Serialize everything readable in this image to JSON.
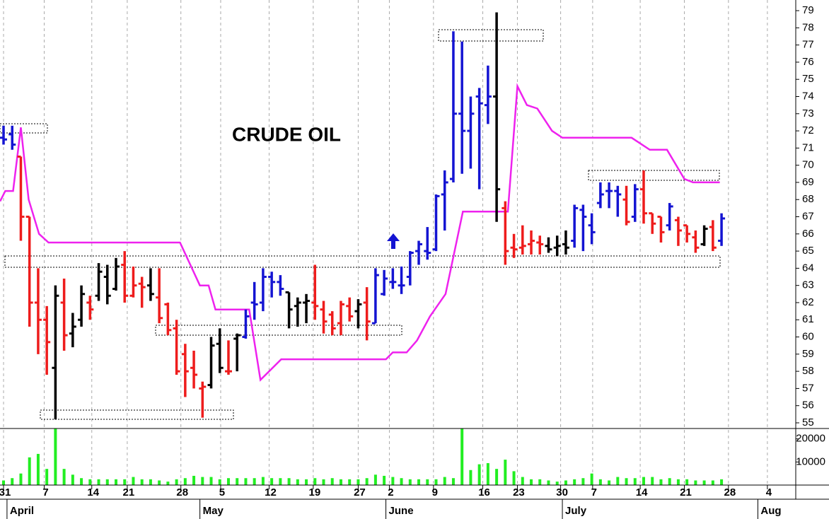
{
  "chart_data": [
    {
      "type": "ohlc",
      "title": "CRUDE OIL",
      "open": [
        71.6,
        71.8,
        70.5,
        67.0,
        62.0,
        61.0,
        58.2,
        62.0,
        60.2,
        61.0,
        62.0,
        62.4,
        63.5,
        62.8,
        64.2,
        62.4,
        63.1,
        63.0,
        62.3,
        61.9,
        60.5,
        59.0,
        58.2,
        57.0,
        57.2,
        59.6,
        58.0,
        59.9,
        60.0,
        62.0,
        62.0,
        63.5,
        63.2,
        62.6,
        61.8,
        62.0,
        62.0,
        61.6,
        61.3,
        60.8,
        61.8,
        61.5,
        62.0,
        60.8,
        62.5,
        63.2,
        63.0,
        63.5,
        65.0,
        65.0,
        65.1,
        68.3,
        69.2,
        73.0,
        72.0,
        74.0,
        73.5,
        74.0,
        67.5,
        65.2,
        65.2,
        65.4,
        65.5,
        65.3,
        65.2,
        65.4,
        65.6,
        67.4,
        66.5,
        67.8,
        68.5,
        68.5,
        68.0,
        67.0,
        68.6,
        67.2,
        67.0,
        66.5,
        66.8,
        66.5,
        65.8,
        65.4,
        66.4,
        65.6
      ],
      "high": [
        72.3,
        72.3,
        70.5,
        67.0,
        64.0,
        61.8,
        63.0,
        63.4,
        61.4,
        63.0,
        62.4,
        64.3,
        64.2,
        64.6,
        65.0,
        64.1,
        63.5,
        64.0,
        64.0,
        62.0,
        61.0,
        59.6,
        59.2,
        57.4,
        60.0,
        60.5,
        59.8,
        60.2,
        61.6,
        63.2,
        64.0,
        63.8,
        63.6,
        62.6,
        62.3,
        62.5,
        64.2,
        62.1,
        61.5,
        62.1,
        62.3,
        62.2,
        62.9,
        64.0,
        63.9,
        64.0,
        64.1,
        65.0,
        65.6,
        66.4,
        68.3,
        69.7,
        77.8,
        77.2,
        74.0,
        74.5,
        75.8,
        78.9,
        67.9,
        66.0,
        66.5,
        66.2,
        65.9,
        65.8,
        65.9,
        66.2,
        67.7,
        67.7,
        67.2,
        69.0,
        69.0,
        68.8,
        68.8,
        68.9,
        69.7,
        67.2,
        67.0,
        67.8,
        67.0,
        66.5,
        66.2,
        66.5,
        66.8,
        67.2
      ],
      "low": [
        71.2,
        70.9,
        65.6,
        60.6,
        59.0,
        57.8,
        55.2,
        59.2,
        59.4,
        60.6,
        61.0,
        62.1,
        61.9,
        62.7,
        62.0,
        62.3,
        61.7,
        62.1,
        60.8,
        60.1,
        57.8,
        56.5,
        57.0,
        55.3,
        57.0,
        57.9,
        57.8,
        58.0,
        59.9,
        61.0,
        61.5,
        62.3,
        62.4,
        60.5,
        60.6,
        60.8,
        61.0,
        60.2,
        60.1,
        60.1,
        60.9,
        60.5,
        59.8,
        60.8,
        62.4,
        62.8,
        62.5,
        63.0,
        64.2,
        64.5,
        65.0,
        66.2,
        69.0,
        69.5,
        69.8,
        68.6,
        72.4,
        66.7,
        64.2,
        64.6,
        64.8,
        64.8,
        64.8,
        64.9,
        64.7,
        64.8,
        65.2,
        65.0,
        65.4,
        67.5,
        67.5,
        67.0,
        66.5,
        66.7,
        66.6,
        66.0,
        65.5,
        66.2,
        65.3,
        65.5,
        64.9,
        65.3,
        65.0,
        65.3
      ],
      "close": [
        71.5,
        71.2,
        67.0,
        62.0,
        61.0,
        59.7,
        62.4,
        60.1,
        60.6,
        62.5,
        61.6,
        63.8,
        62.4,
        64.1,
        62.4,
        63.0,
        62.9,
        62.5,
        61.1,
        60.4,
        58.0,
        58.0,
        57.8,
        57.1,
        59.5,
        58.2,
        58.0,
        60.1,
        61.2,
        61.9,
        63.5,
        63.2,
        62.8,
        61.6,
        62.0,
        62.1,
        61.8,
        60.9,
        60.5,
        61.9,
        61.2,
        61.9,
        60.9,
        63.6,
        63.4,
        63.2,
        63.0,
        64.9,
        65.4,
        64.9,
        68.2,
        69.0,
        73.0,
        72.0,
        73.0,
        73.6,
        74.0,
        68.6,
        65.0,
        65.1,
        65.3,
        65.6,
        65.4,
        65.1,
        65.3,
        65.2,
        67.5,
        67.0,
        66.1,
        68.3,
        68.5,
        68.3,
        66.7,
        68.6,
        67.2,
        66.6,
        66.1,
        67.6,
        66.2,
        66.0,
        65.2,
        66.3,
        65.2,
        66.9
      ],
      "colors": [
        "#1414d2",
        "#1414d2",
        "#ee1c1c",
        "#ee1c1c",
        "#ee1c1c",
        "#ee1c1c",
        "#000000",
        "#ee1c1c",
        "#000000",
        "#000000",
        "#ee1c1c",
        "#000000",
        "#000000",
        "#000000",
        "#ee1c1c",
        "#ee1c1c",
        "#ee1c1c",
        "#000000",
        "#ee1c1c",
        "#ee1c1c",
        "#ee1c1c",
        "#ee1c1c",
        "#ee1c1c",
        "#ee1c1c",
        "#000000",
        "#000000",
        "#ee1c1c",
        "#000000",
        "#1414d2",
        "#1414d2",
        "#1414d2",
        "#1414d2",
        "#1414d2",
        "#000000",
        "#000000",
        "#000000",
        "#ee1c1c",
        "#ee1c1c",
        "#ee1c1c",
        "#ee1c1c",
        "#ee1c1c",
        "#000000",
        "#ee1c1c",
        "#1414d2",
        "#1414d2",
        "#1414d2",
        "#1414d2",
        "#1414d2",
        "#1414d2",
        "#1414d2",
        "#1414d2",
        "#1414d2",
        "#1414d2",
        "#1414d2",
        "#1414d2",
        "#1414d2",
        "#1414d2",
        "#000000",
        "#ee1c1c",
        "#ee1c1c",
        "#ee1c1c",
        "#ee1c1c",
        "#ee1c1c",
        "#000000",
        "#000000",
        "#000000",
        "#1414d2",
        "#1414d2",
        "#1414d2",
        "#1414d2",
        "#1414d2",
        "#1414d2",
        "#ee1c1c",
        "#1414d2",
        "#ee1c1c",
        "#ee1c1c",
        "#ee1c1c",
        "#1414d2",
        "#ee1c1c",
        "#ee1c1c",
        "#ee1c1c",
        "#000000",
        "#ee1c1c",
        "#1414d2"
      ],
      "overlay": {
        "color": "#ee22ee",
        "x": [
          -0.4,
          0.2,
          1.1,
          2.0,
          2.9,
          4.1,
          5.2,
          20.4,
          22.7,
          23.7,
          24.5,
          28.4,
          29.7,
          32.1,
          44.2,
          45.0,
          46.6,
          47.8,
          49.3,
          51.1,
          53.1,
          58.3,
          59.4,
          60.5,
          61.7,
          63.4,
          64.6,
          72.6,
          74.7,
          76.7,
          78.7,
          79.7,
          82.8
        ],
        "values": [
          67.9,
          68.5,
          68.5,
          72.2,
          68.0,
          66.0,
          65.5,
          65.5,
          63.0,
          63.0,
          61.6,
          61.6,
          57.5,
          58.7,
          58.7,
          59.1,
          59.1,
          59.8,
          61.2,
          62.5,
          67.3,
          67.3,
          74.6,
          73.5,
          73.3,
          72.0,
          71.6,
          71.6,
          70.9,
          70.9,
          69.2,
          69.0,
          69.0
        ]
      },
      "xlim": [
        -0.41,
        91.58
      ],
      "ylim": [
        54.67,
        79.62
      ],
      "yticks": [
        55,
        56,
        57,
        58,
        59,
        60,
        61,
        62,
        63,
        64,
        65,
        66,
        67,
        68,
        69,
        70,
        71,
        72,
        73,
        74,
        75,
        76,
        77,
        78,
        79
      ],
      "xticks": [
        {
          "value": 0,
          "label": "31"
        },
        {
          "value": 4.7,
          "label": "7"
        },
        {
          "value": 10.2,
          "label": "14"
        },
        {
          "value": 14.3,
          "label": "21"
        },
        {
          "value": 20.5,
          "label": "28"
        },
        {
          "value": 25.1,
          "label": "5"
        },
        {
          "value": 30.7,
          "label": "12"
        },
        {
          "value": 35.8,
          "label": "19"
        },
        {
          "value": 41.0,
          "label": "27"
        },
        {
          "value": 44.6,
          "label": "2"
        },
        {
          "value": 49.7,
          "label": "9"
        },
        {
          "value": 55.4,
          "label": "16"
        },
        {
          "value": 59.4,
          "label": "23"
        },
        {
          "value": 64.4,
          "label": "30"
        },
        {
          "value": 68.1,
          "label": "7"
        },
        {
          "value": 73.6,
          "label": "14"
        },
        {
          "value": 78.7,
          "label": "21"
        },
        {
          "value": 83.8,
          "label": "28"
        },
        {
          "value": 88.3,
          "label": "4"
        }
      ],
      "months": [
        {
          "value": 0.4,
          "label": "April"
        },
        {
          "value": 22.7,
          "label": "May"
        },
        {
          "value": 44.2,
          "label": "June"
        },
        {
          "value": 64.6,
          "label": "July"
        },
        {
          "value": 87.2,
          "label": "Aug"
        }
      ],
      "grid": true
    },
    {
      "type": "bar",
      "color": "#22ee22",
      "values": [
        2000,
        3000,
        5000,
        12000,
        13500,
        7000,
        24500,
        7000,
        4500,
        3000,
        2500,
        2500,
        2500,
        2500,
        2500,
        3500,
        2500,
        2500,
        2000,
        1500,
        2500,
        3000,
        4000,
        3500,
        3500,
        2500,
        3000,
        3000,
        3000,
        3000,
        3500,
        3000,
        3000,
        3000,
        2500,
        2500,
        3000,
        2500,
        3000,
        2500,
        2500,
        2500,
        3000,
        4500,
        4000,
        3500,
        3000,
        2500,
        2500,
        2500,
        2500,
        3500,
        3000,
        24500,
        6500,
        9000,
        9500,
        7000,
        11000,
        6000,
        3500,
        2500,
        2500,
        2000,
        1500,
        2000,
        2500,
        3000,
        5000,
        2500,
        2000,
        3500,
        3000,
        3000,
        3500,
        3500,
        2500,
        3000,
        2500,
        2500,
        2000,
        2000,
        2000,
        2500
      ],
      "ylim": [
        0,
        24500
      ],
      "yticks": [
        10000,
        20000
      ]
    }
  ]
}
